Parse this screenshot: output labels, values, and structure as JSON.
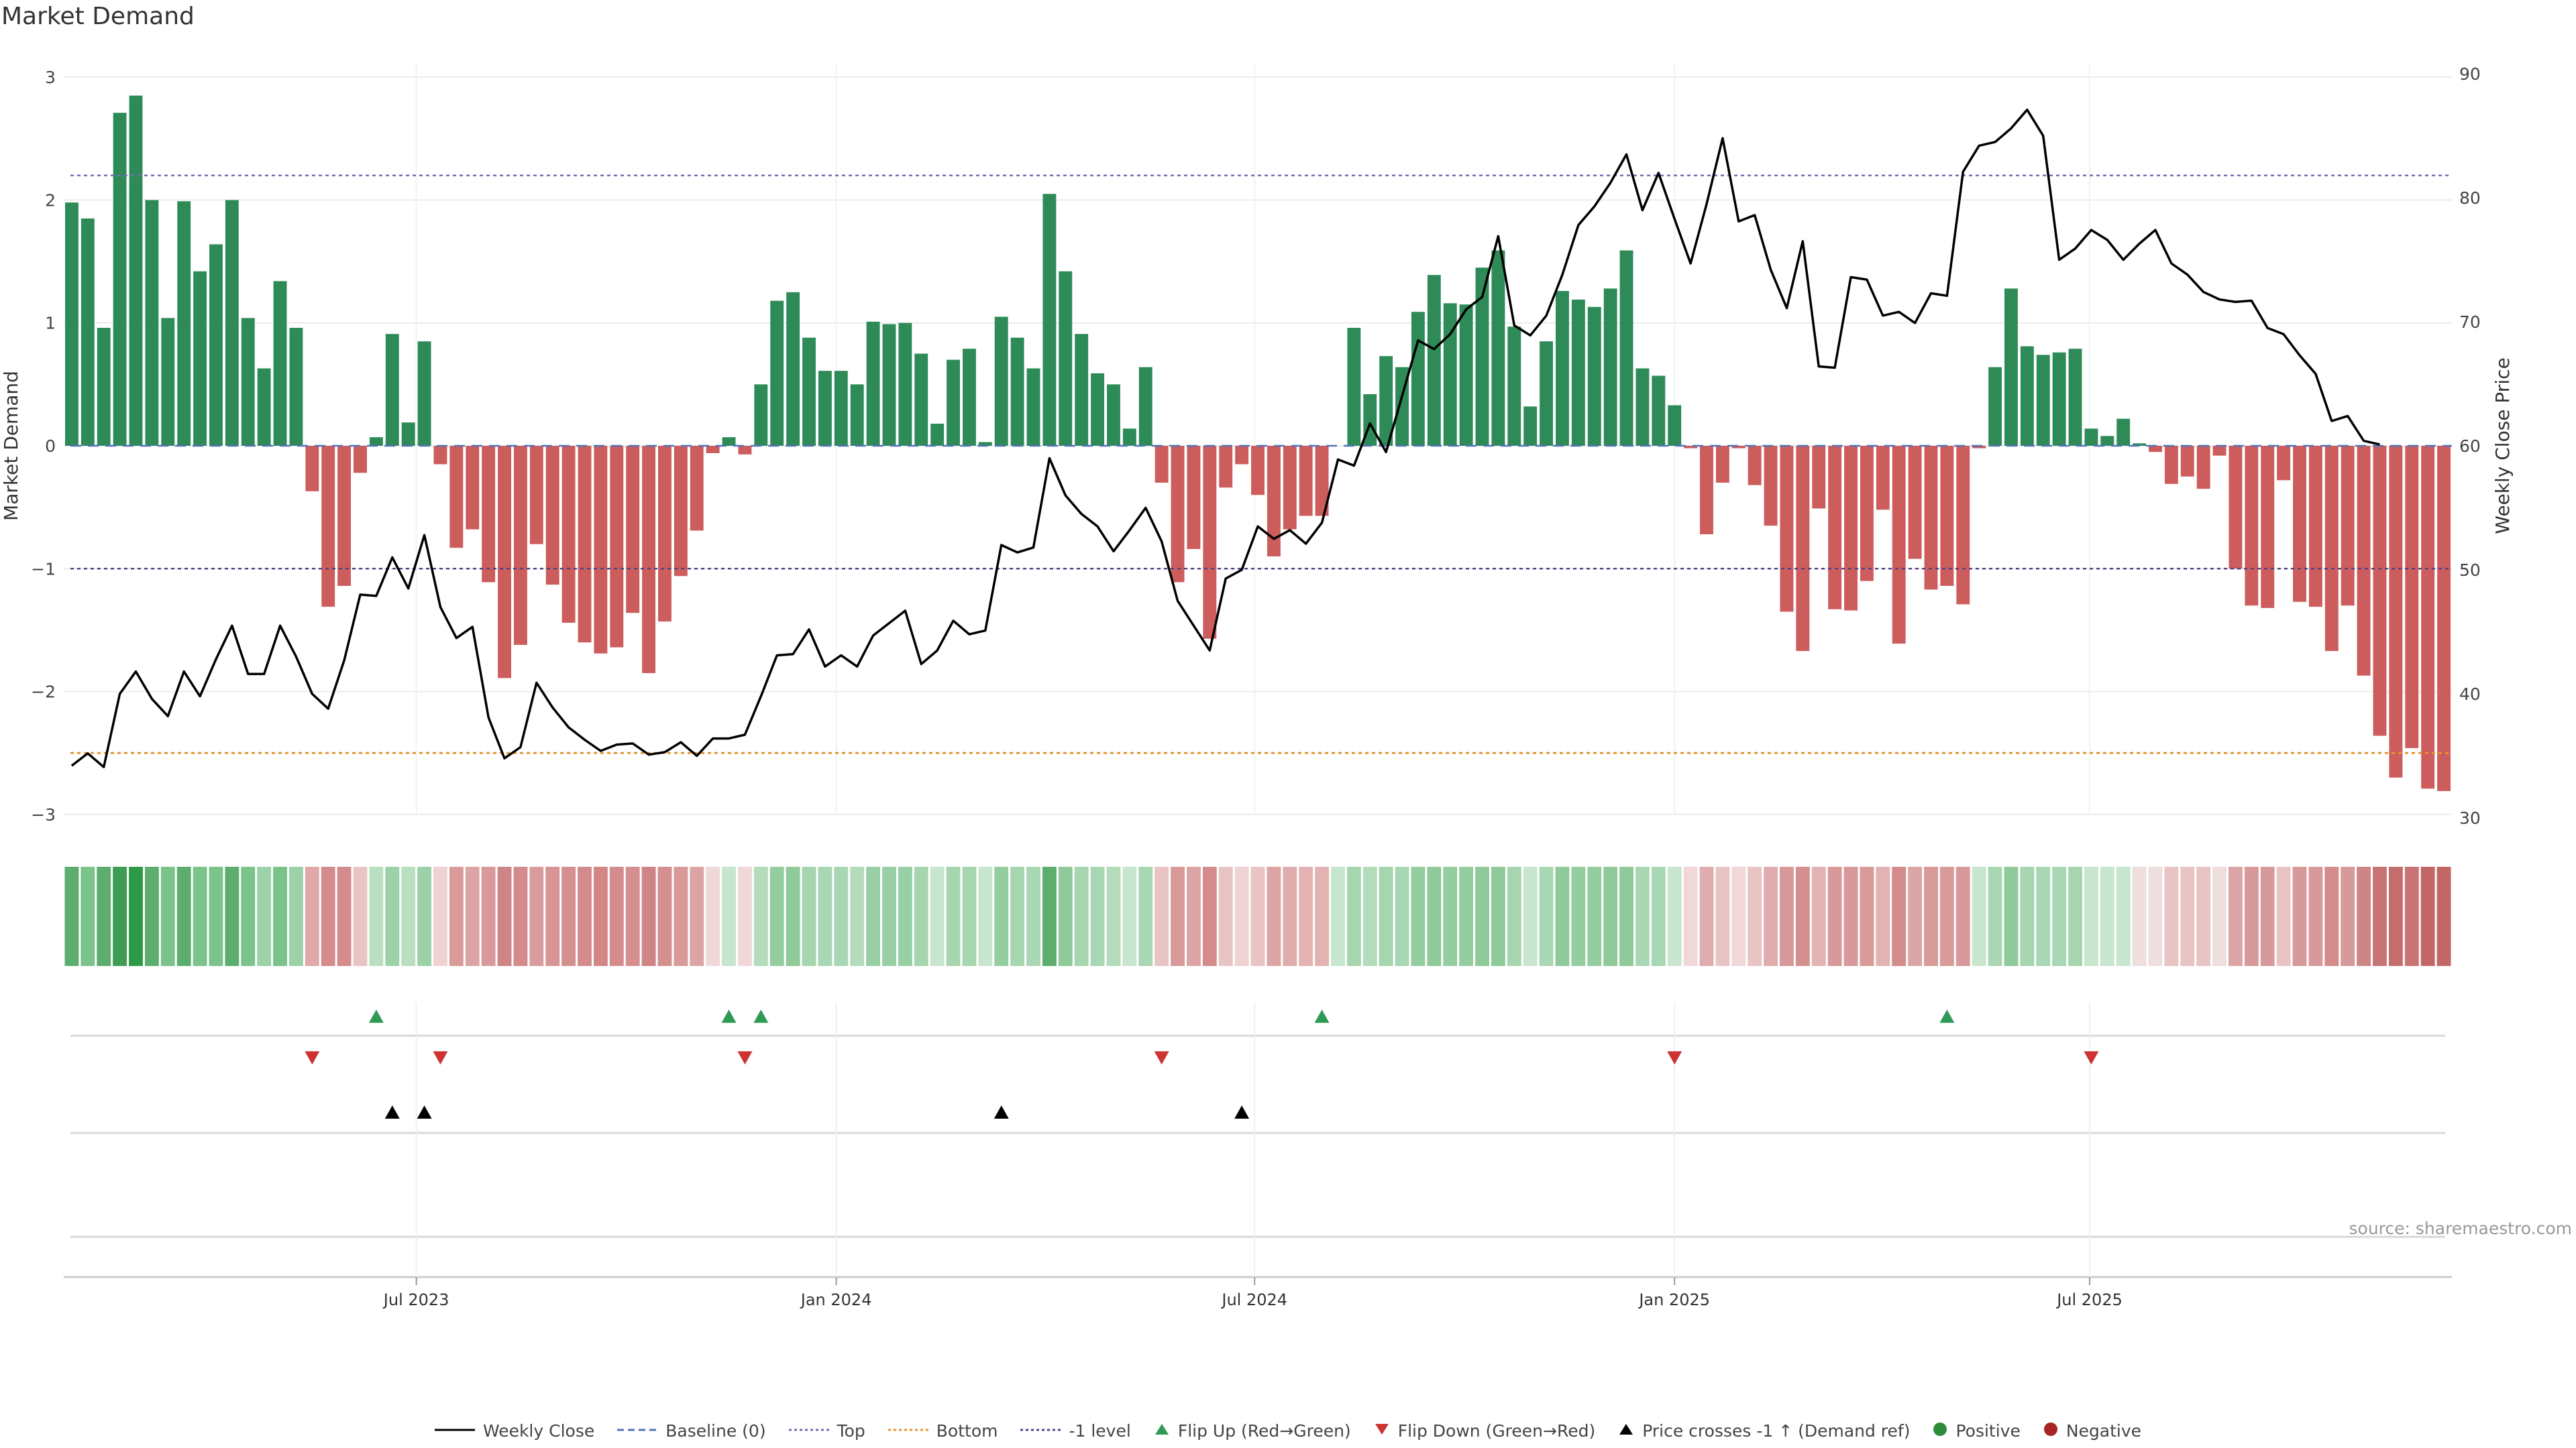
{
  "chart_data": {
    "type": "bar",
    "title": "Market Demand",
    "source": "source: sharemaestro.com",
    "ylabel_left": "Market Demand",
    "ylabel_right": "Weekly Close Price",
    "ylim_left": [
      -3,
      3
    ],
    "ylim_right": [
      30,
      90
    ],
    "yticks_left": [
      "3",
      "2",
      "1",
      "0",
      "−1",
      "−2",
      "−3"
    ],
    "yticks_right": [
      "90",
      "80",
      "70",
      "60",
      "50",
      "40",
      "30"
    ],
    "xticks": [
      {
        "label": "Jul 2023",
        "week": 21.5
      },
      {
        "label": "Jan 2024",
        "week": 47.7
      },
      {
        "label": "Jul 2024",
        "week": 73.8
      },
      {
        "label": "Jan 2025",
        "week": 100
      },
      {
        "label": "Jul 2025",
        "week": 125.9
      }
    ],
    "reference_lines": {
      "top": 2.2,
      "bottom": -2.5,
      "minus_one": -1,
      "baseline": 0
    },
    "demand": [
      1.98,
      1.85,
      0.96,
      2.71,
      2.85,
      2.0,
      1.04,
      1.99,
      1.42,
      1.64,
      2.0,
      1.04,
      0.63,
      1.34,
      0.96,
      -0.37,
      -1.31,
      -1.14,
      -0.22,
      0.07,
      0.91,
      0.19,
      0.85,
      -0.15,
      -0.83,
      -0.68,
      -1.11,
      -1.89,
      -1.62,
      -0.8,
      -1.13,
      -1.44,
      -1.6,
      -1.69,
      -1.64,
      -1.36,
      -1.85,
      -1.43,
      -1.06,
      -0.69,
      -0.06,
      0.07,
      -0.07,
      0.5,
      1.18,
      1.25,
      0.88,
      0.61,
      0.61,
      0.5,
      1.01,
      0.99,
      1.0,
      0.75,
      0.18,
      0.7,
      0.79,
      0.03,
      1.05,
      0.88,
      0.63,
      2.05,
      1.42,
      0.91,
      0.59,
      0.5,
      0.14,
      0.64,
      -0.3,
      -1.11,
      -0.84,
      -1.57,
      -0.34,
      -0.15,
      -0.4,
      -0.9,
      -0.68,
      -0.57,
      -0.57,
      0.0,
      0.96,
      0.42,
      0.73,
      0.64,
      1.09,
      1.39,
      1.16,
      1.15,
      1.45,
      1.59,
      0.97,
      0.32,
      0.85,
      1.26,
      1.19,
      1.13,
      1.28,
      1.59,
      0.63,
      0.57,
      0.33,
      -0.02,
      -0.72,
      -0.3,
      -0.02,
      -0.32,
      -0.65,
      -1.35,
      -1.67,
      -0.51,
      -1.33,
      -1.34,
      -1.1,
      -0.52,
      -1.61,
      -0.92,
      -1.17,
      -1.14,
      -1.29,
      -0.02,
      0.64,
      1.28,
      0.81,
      0.74,
      0.76,
      0.79,
      0.14,
      0.08,
      0.22,
      0.02,
      -0.05,
      -0.31,
      -0.25,
      -0.35,
      -0.08,
      -1.0,
      -1.3,
      -1.32,
      -0.28,
      -1.27,
      -1.31,
      -1.67,
      -1.3,
      -1.87,
      -2.36,
      -2.7,
      -2.46,
      -2.79,
      -2.81
    ],
    "price": [
      34.2,
      35.2,
      34.1,
      40.0,
      41.8,
      39.6,
      38.2,
      41.8,
      39.8,
      42.8,
      45.5,
      41.6,
      41.6,
      45.5,
      43.0,
      40.0,
      38.8,
      42.7,
      48.0,
      47.9,
      51.0,
      48.5,
      52.8,
      47.0,
      44.5,
      45.4,
      38.1,
      34.8,
      35.7,
      40.9,
      38.9,
      37.3,
      36.3,
      35.4,
      35.9,
      36.0,
      35.1,
      35.3,
      36.1,
      35.0,
      36.4,
      36.4,
      36.7,
      39.8,
      43.1,
      43.2,
      45.2,
      42.2,
      43.1,
      42.2,
      44.7,
      45.7,
      46.7,
      42.4,
      43.5,
      45.9,
      44.8,
      45.1,
      52.0,
      51.4,
      51.8,
      59.0,
      56.0,
      54.5,
      53.5,
      51.5,
      53.2,
      55.0,
      52.3,
      47.5,
      45.5,
      43.5,
      49.3,
      50.0,
      53.5,
      52.5,
      53.2,
      52.1,
      53.8,
      58.9,
      58.4,
      61.8,
      59.5,
      64.0,
      68.5,
      67.8,
      69.0,
      71.0,
      72.0,
      76.9,
      69.7,
      68.9,
      70.5,
      73.8,
      77.8,
      79.3,
      81.2,
      83.5,
      79.0,
      82.0,
      78.3,
      74.7,
      79.5,
      84.8,
      78.1,
      78.6,
      74.2,
      71.1,
      76.5,
      66.4,
      66.3,
      73.6,
      73.4,
      70.5,
      70.8,
      69.9,
      72.3,
      72.1,
      82.1,
      84.2,
      84.5,
      85.6,
      87.1,
      85.0,
      75.0,
      75.9,
      77.4,
      76.6,
      75.0,
      76.3,
      77.4,
      74.7,
      73.8,
      72.4,
      71.8,
      71.6,
      71.7,
      69.5,
      69.0,
      67.3,
      65.8,
      62.0,
      62.4,
      60.4,
      60.1
    ],
    "strip_colors": [
      "#5dae6d",
      "#7cc28b",
      "#5dae6d",
      "#3f9c54",
      "#2e9a47",
      "#5dae6d",
      "#7cc28b",
      "#5dae6d",
      "#7cc28b",
      "#7cc28b",
      "#5dae6d",
      "#7cc28b",
      "#9dd1a8",
      "#7cc28b",
      "#9dd1a8",
      "#e0a8a8",
      "#d38b8b",
      "#d38b8b",
      "#e8c4c4",
      "#b9dfc0",
      "#9dd1a8",
      "#b9dfc0",
      "#9dd1a8",
      "#efd2d2",
      "#d99a9a",
      "#dba5a5",
      "#d79999",
      "#ce8585",
      "#d38b8b",
      "#d99c9c",
      "#d79595",
      "#d48f8f",
      "#d38b8b",
      "#d28686",
      "#d38b8b",
      "#d68f8f",
      "#cf8585",
      "#d48f8f",
      "#d99a9a",
      "#dba5a5",
      "#f0d8d8",
      "#c7e6cd",
      "#f0d8d8",
      "#b4dcbb",
      "#94cd9f",
      "#8fca9b",
      "#a6d5b0",
      "#aad7b3",
      "#aad7b3",
      "#b4dcbb",
      "#99cfa4",
      "#99cfa4",
      "#99cfa4",
      "#a6d5b0",
      "#c7e6cd",
      "#a6d5b0",
      "#a6d5b0",
      "#c7e6cd",
      "#94cd9f",
      "#a6d5b0",
      "#aad7b3",
      "#5dae6d",
      "#8fca9b",
      "#a6d5b0",
      "#aad7b3",
      "#b4dcbb",
      "#c7e6cd",
      "#aad7b3",
      "#e8c4c4",
      "#d99a9a",
      "#dba5a5",
      "#d38b8b",
      "#e8c4c4",
      "#efd2d2",
      "#e8c4c4",
      "#dba5a5",
      "#dfadad",
      "#e3b3b3",
      "#e3b3b3",
      "#c7e6cd",
      "#a6d5b0",
      "#b4dcbb",
      "#a6d5b0",
      "#aad7b3",
      "#94cd9f",
      "#8fca9b",
      "#94cd9f",
      "#94cd9f",
      "#8fca9b",
      "#8fca9b",
      "#a6d5b0",
      "#c7e6cd",
      "#aad7b3",
      "#8fca9b",
      "#94cd9f",
      "#94cd9f",
      "#8fca9b",
      "#8fca9b",
      "#aad7b3",
      "#aad7b3",
      "#c7e6cd",
      "#f0d8d8",
      "#dfadad",
      "#e8c4c4",
      "#f0d8d8",
      "#e8c4c4",
      "#dfadad",
      "#d79999",
      "#d48f8f",
      "#e3b3b3",
      "#d79999",
      "#d79999",
      "#d99a9a",
      "#e3b3b3",
      "#d38b8b",
      "#dba5a5",
      "#d99a9a",
      "#d99a9a",
      "#d79999",
      "#c7e6cd",
      "#aad7b3",
      "#8fca9b",
      "#a6d5b0",
      "#aad7b3",
      "#aad7b3",
      "#a6d5b0",
      "#c7e6cd",
      "#c7e6cd",
      "#c7e6cd",
      "#eedede",
      "#eedede",
      "#e8c4c4",
      "#e8c4c4",
      "#e8c4c4",
      "#eedede",
      "#dba5a5",
      "#d79999",
      "#d79999",
      "#e8c4c4",
      "#d79999",
      "#d79999",
      "#d38b8b",
      "#d79999",
      "#ce8585",
      "#c87474",
      "#c56c6c",
      "#c87474",
      "#c26666",
      "#c26666"
    ],
    "flip_up_weeks": [
      19,
      41,
      43,
      78,
      117
    ],
    "flip_down_weeks": [
      15,
      23,
      42,
      68,
      100,
      126
    ],
    "price_cross_weeks": [
      20,
      22,
      58,
      73
    ],
    "legend": [
      {
        "label": "Weekly Close",
        "type": "line-solid",
        "color": "#000000"
      },
      {
        "label": "Baseline (0)",
        "type": "line-dash",
        "color": "#4f73b8"
      },
      {
        "label": "Top",
        "type": "line-dot",
        "color": "#6f6fb8"
      },
      {
        "label": "Bottom",
        "type": "line-dot",
        "color": "#e6962e"
      },
      {
        "label": "-1 level",
        "type": "line-dot",
        "color": "#554488"
      },
      {
        "label": "Flip Up (Red→Green)",
        "type": "tri-up",
        "color": "#2e9a55"
      },
      {
        "label": "Flip Down (Green→Red)",
        "type": "tri-down",
        "color": "#cc3333"
      },
      {
        "label": "Price crosses -1 ↑ (Demand ref)",
        "type": "tri-up",
        "color": "#000000"
      },
      {
        "label": "Positive",
        "type": "dot",
        "color": "#2e8b3a"
      },
      {
        "label": "Negative",
        "type": "dot",
        "color": "#a82424"
      }
    ],
    "colors": {
      "positive_bar": "#2e8b57",
      "negative_bar": "#cd5c5c",
      "grid": "#ececec",
      "axis": "#cccccc"
    }
  }
}
